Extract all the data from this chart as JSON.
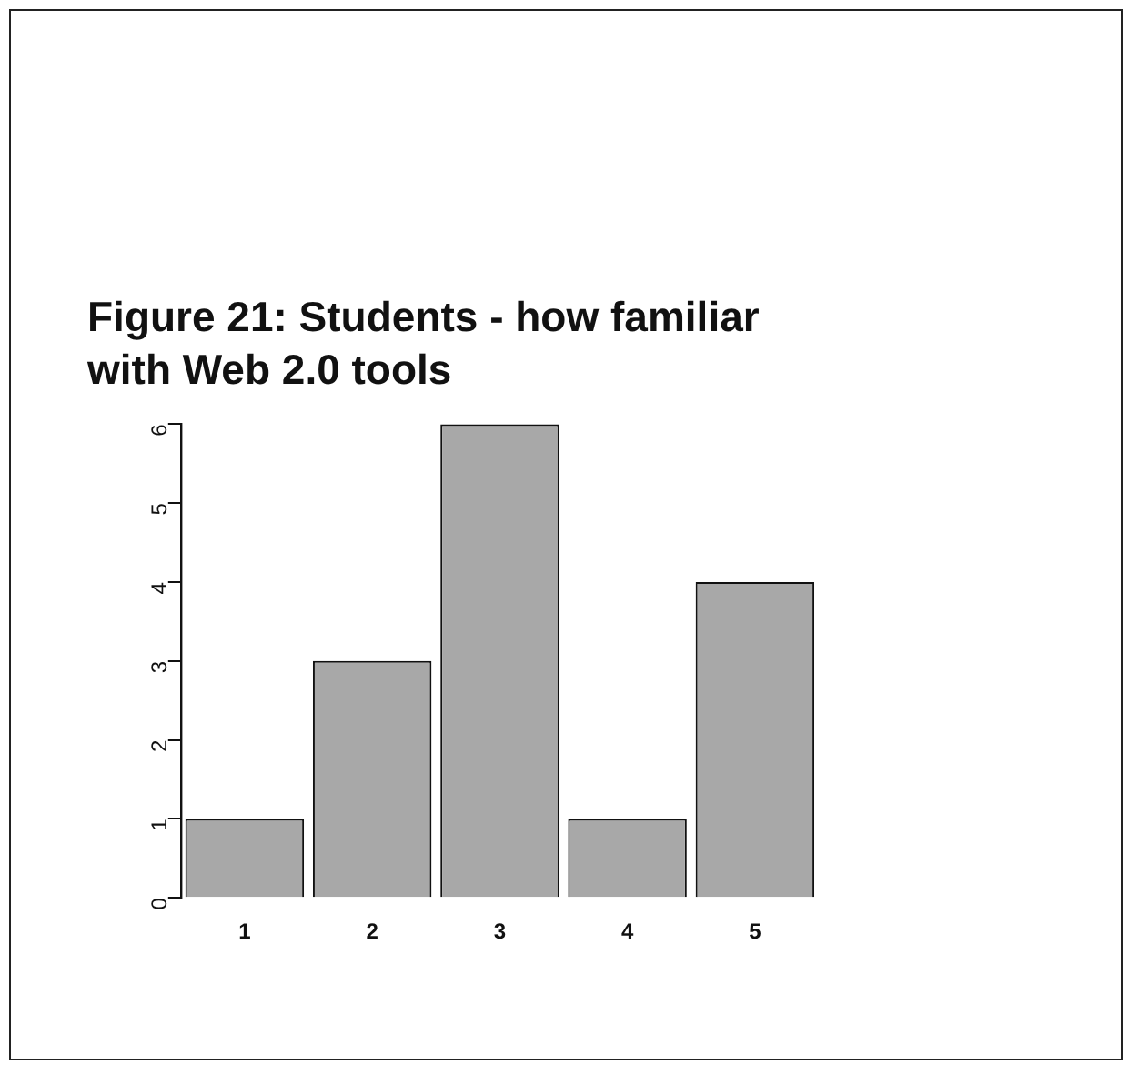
{
  "chart_data": {
    "type": "bar",
    "title": "Figure 21: Students - how familiar with Web 2.0 tools",
    "categories": [
      "1",
      "2",
      "3",
      "4",
      "5"
    ],
    "values": [
      1,
      3,
      6,
      1,
      4
    ],
    "color": "#a8a8a8",
    "ylim": [
      0,
      6
    ],
    "yticks": [
      0,
      1,
      2,
      3,
      4,
      5,
      6
    ],
    "grid": false,
    "legend": false
  }
}
